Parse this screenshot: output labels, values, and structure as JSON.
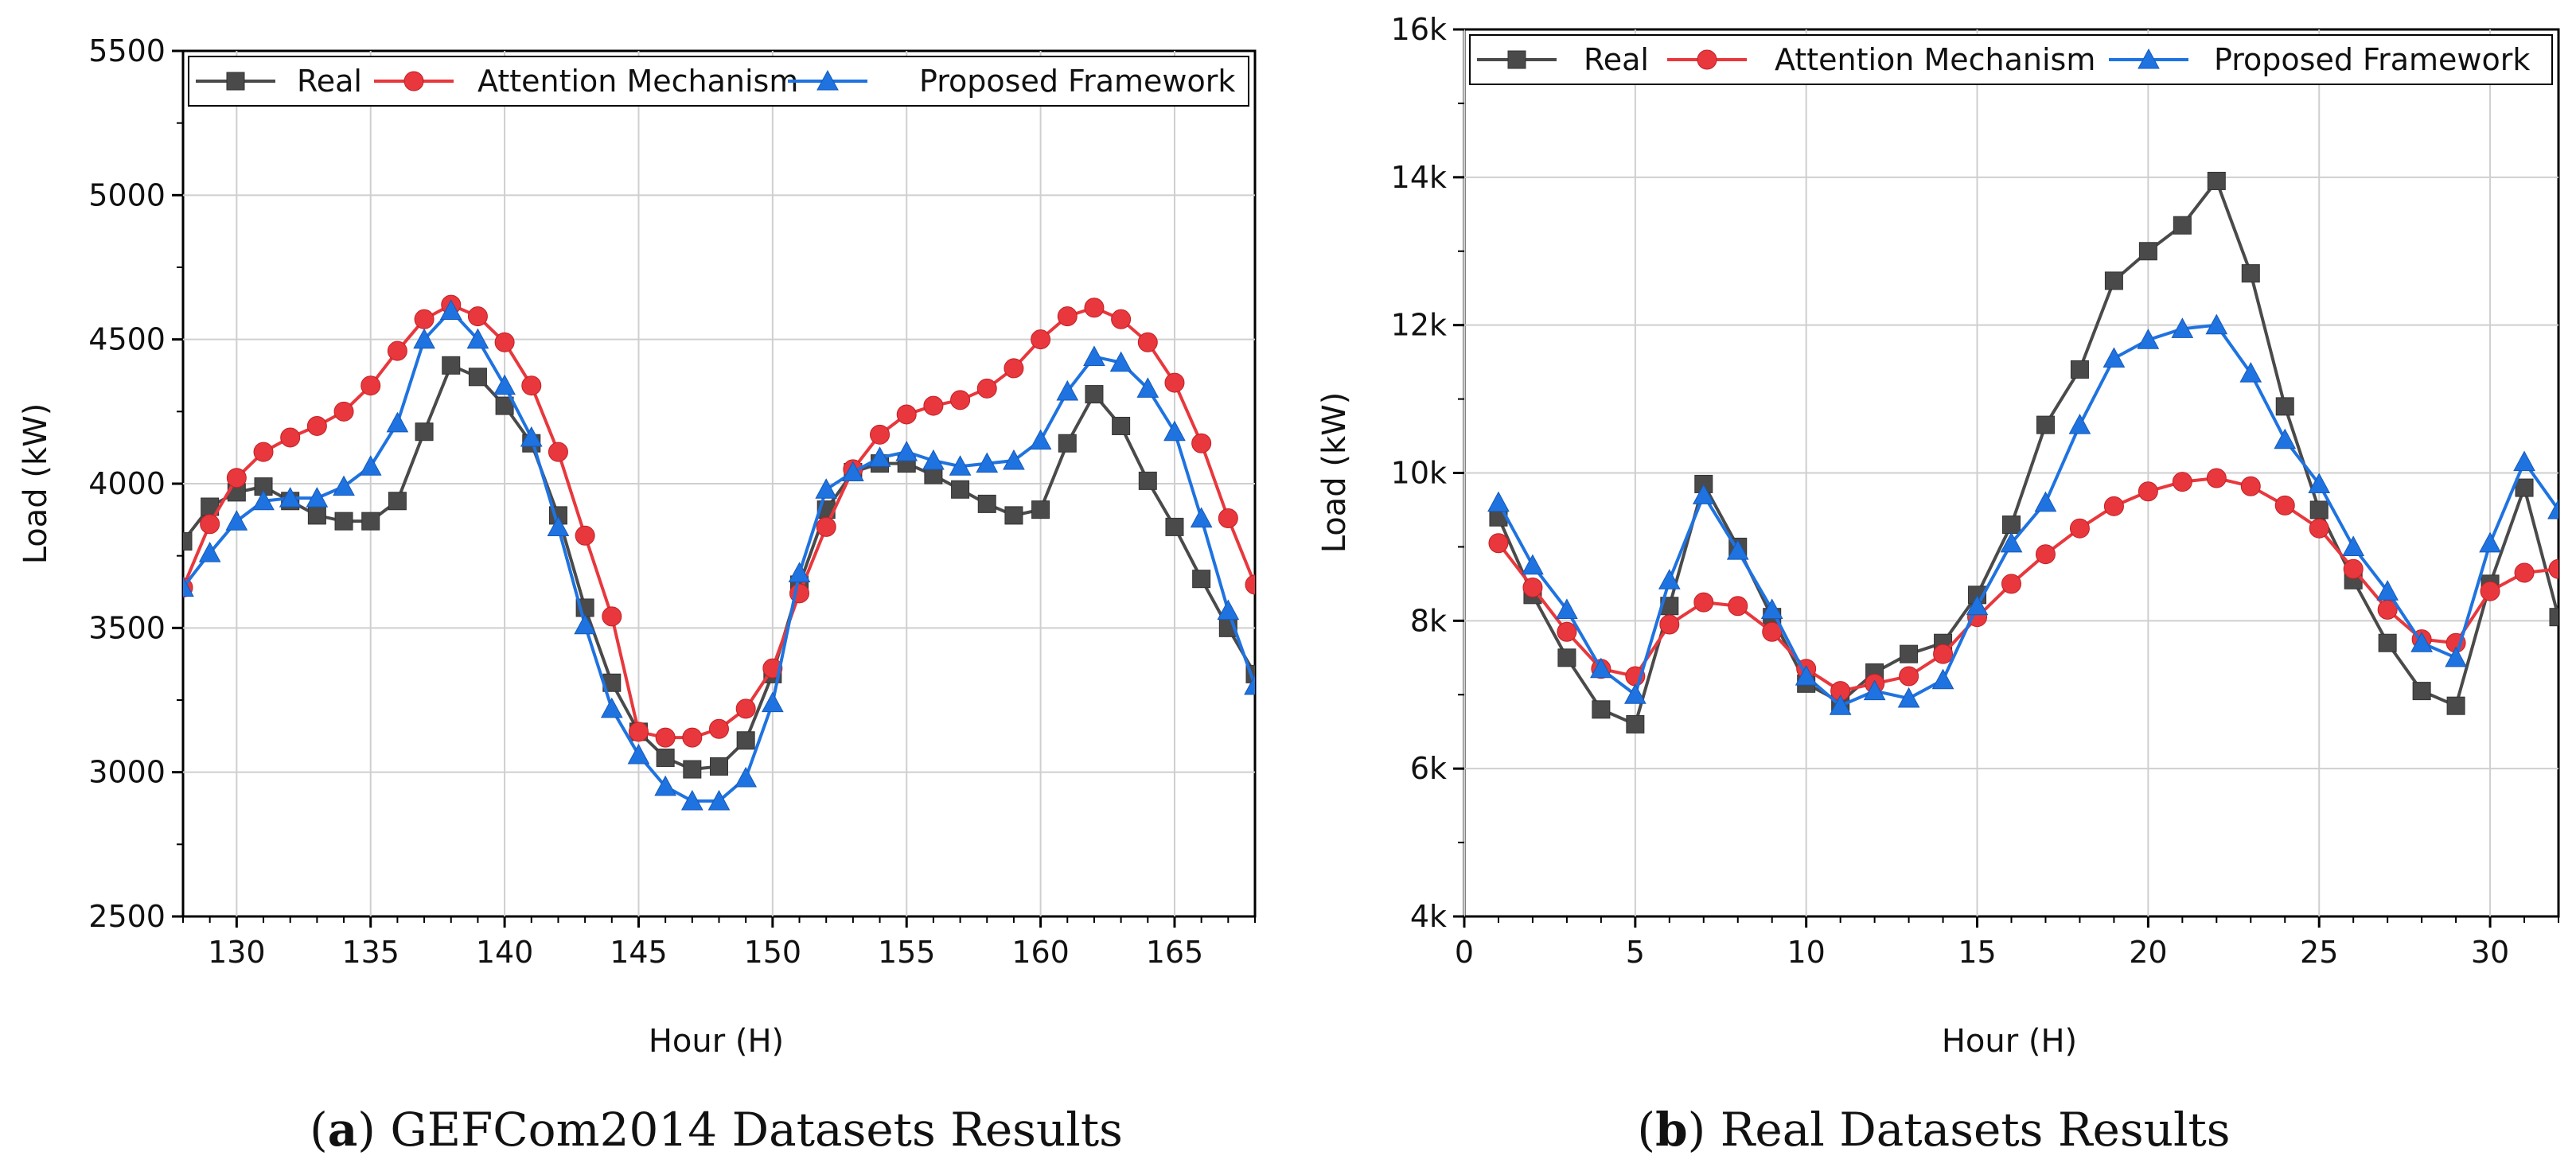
{
  "chart_data": [
    {
      "type": "line",
      "caption_letter": "a",
      "caption_text": " GEFCom2014 Datasets Results",
      "xlabel": "Hour (H)",
      "ylabel": "Load (kW)",
      "xlim": [
        128,
        168
      ],
      "ylim": [
        2500,
        5500
      ],
      "xticks": [
        130,
        135,
        140,
        145,
        150,
        155,
        160,
        165
      ],
      "xtick_labels": [
        "130",
        "135",
        "140",
        "145",
        "150",
        "155",
        "160",
        "165"
      ],
      "yticks": [
        2500,
        3000,
        3500,
        4000,
        4500,
        5000,
        5500
      ],
      "ytick_labels": [
        "2500",
        "3000",
        "3500",
        "4000",
        "4500",
        "5000",
        "5500"
      ],
      "grid": true,
      "legend_position": "top",
      "x": [
        128,
        129,
        130,
        131,
        132,
        133,
        134,
        135,
        136,
        137,
        138,
        139,
        140,
        141,
        142,
        143,
        144,
        145,
        146,
        147,
        148,
        149,
        150,
        151,
        152,
        153,
        154,
        155,
        156,
        157,
        158,
        159,
        160,
        161,
        162,
        163,
        164,
        165,
        166,
        167,
        168
      ],
      "series": [
        {
          "name": "Real",
          "color": "#4a4a4a",
          "marker": "square",
          "values": [
            3800,
            3920,
            3970,
            3990,
            3940,
            3890,
            3870,
            3870,
            3940,
            4180,
            4410,
            4370,
            4270,
            4140,
            3890,
            3570,
            3310,
            3140,
            3050,
            3010,
            3020,
            3110,
            3340,
            3650,
            3910,
            4040,
            4070,
            4070,
            4030,
            3980,
            3930,
            3890,
            3910,
            4140,
            4310,
            4200,
            4010,
            3850,
            3670,
            3500,
            3340
          ]
        },
        {
          "name": "Attention Mechanism",
          "color": "#e8383d",
          "marker": "circle",
          "values": [
            3640,
            3860,
            4020,
            4110,
            4160,
            4200,
            4250,
            4340,
            4460,
            4570,
            4620,
            4580,
            4490,
            4340,
            4110,
            3820,
            3540,
            3140,
            3120,
            3120,
            3150,
            3220,
            3360,
            3620,
            3850,
            4050,
            4170,
            4240,
            4270,
            4290,
            4330,
            4400,
            4500,
            4580,
            4610,
            4570,
            4490,
            4350,
            4140,
            3880,
            3650
          ]
        },
        {
          "name": "Proposed Framework",
          "color": "#1f73e0",
          "marker": "triangle",
          "values": [
            3640,
            3760,
            3870,
            3940,
            3950,
            3950,
            3990,
            4060,
            4210,
            4500,
            4600,
            4500,
            4340,
            4160,
            3850,
            3510,
            3220,
            3060,
            2950,
            2900,
            2900,
            2980,
            3240,
            3690,
            3980,
            4040,
            4090,
            4110,
            4080,
            4060,
            4070,
            4080,
            4150,
            4320,
            4440,
            4420,
            4330,
            4180,
            3880,
            3560,
            3300
          ]
        }
      ]
    },
    {
      "type": "line",
      "caption_letter": "b",
      "caption_text": " Real Datasets Results",
      "xlabel": "Hour (H)",
      "ylabel": "Load (kW)",
      "xlim": [
        0,
        32
      ],
      "ylim": [
        4000,
        16000
      ],
      "xticks": [
        0,
        5,
        10,
        15,
        20,
        25,
        30
      ],
      "xtick_labels": [
        "0",
        "5",
        "10",
        "15",
        "20",
        "25",
        "30"
      ],
      "yticks": [
        4000,
        6000,
        8000,
        10000,
        12000,
        14000,
        16000
      ],
      "ytick_labels": [
        "4k",
        "6k",
        "8k",
        "10k",
        "12k",
        "14k",
        "16k"
      ],
      "grid": true,
      "legend_position": "top",
      "x": [
        1,
        2,
        3,
        4,
        5,
        6,
        7,
        8,
        9,
        10,
        11,
        12,
        13,
        14,
        15,
        16,
        17,
        18,
        19,
        20,
        21,
        22,
        23,
        24,
        25,
        26,
        27,
        28,
        29,
        30,
        31,
        32
      ],
      "series": [
        {
          "name": "Real",
          "color": "#4a4a4a",
          "marker": "square",
          "values": [
            9400,
            8350,
            7500,
            6800,
            6600,
            8200,
            9850,
            9000,
            8050,
            7150,
            6900,
            7300,
            7550,
            7700,
            8350,
            9300,
            10650,
            11400,
            12600,
            13000,
            13350,
            13950,
            12700,
            10900,
            9500,
            8550,
            7700,
            7050,
            6850,
            8500,
            9800,
            8050
          ]
        },
        {
          "name": "Attention Mechanism",
          "color": "#e8383d",
          "marker": "circle",
          "values": [
            9050,
            8450,
            7850,
            7350,
            7250,
            7950,
            8250,
            8200,
            7850,
            7350,
            7050,
            7150,
            7250,
            7550,
            8050,
            8500,
            8900,
            9250,
            9550,
            9750,
            9880,
            9930,
            9820,
            9560,
            9250,
            8700,
            8150,
            7750,
            7700,
            8400,
            8650,
            8700
          ]
        },
        {
          "name": "Proposed Framework",
          "color": "#1f73e0",
          "marker": "triangle",
          "values": [
            9600,
            8750,
            8150,
            7350,
            7000,
            8550,
            9700,
            8950,
            8150,
            7250,
            6850,
            7050,
            6950,
            7200,
            8200,
            9050,
            9600,
            10650,
            11550,
            11800,
            11950,
            12000,
            11350,
            10450,
            9850,
            9000,
            8400,
            7700,
            7500,
            9050,
            10150,
            9500
          ]
        }
      ]
    }
  ]
}
